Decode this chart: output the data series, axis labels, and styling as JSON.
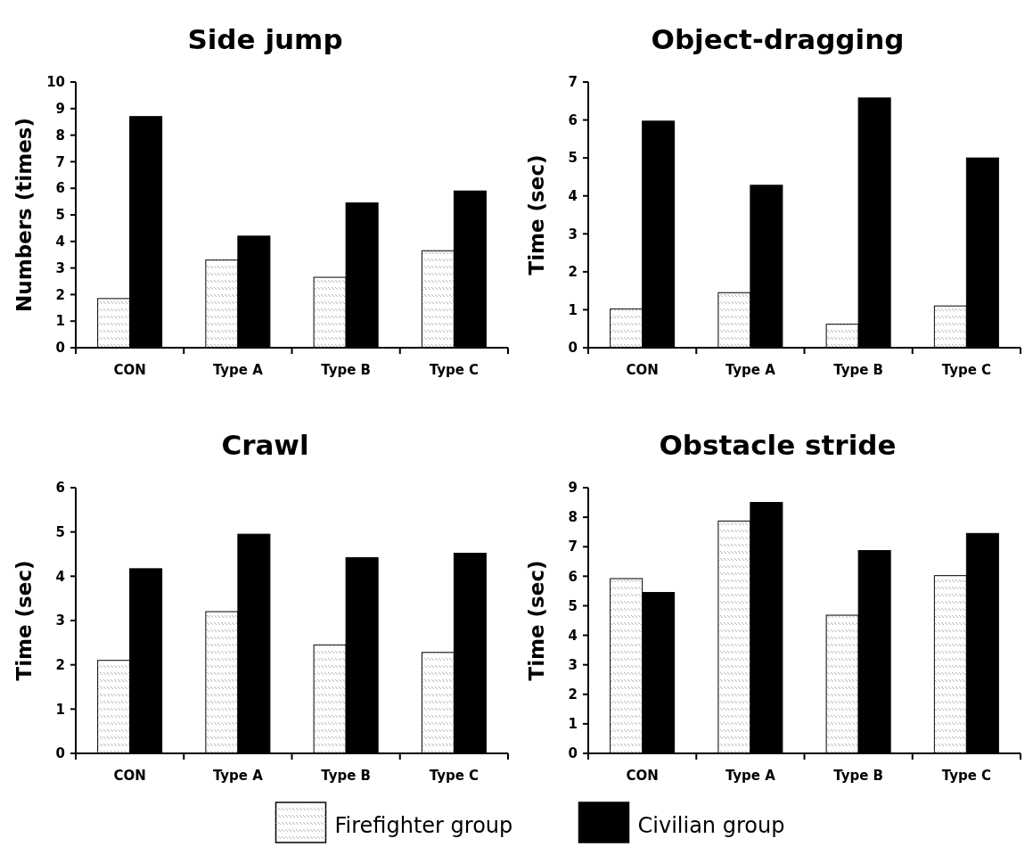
{
  "chart_data": [
    {
      "type": "bar",
      "title": "Side jump",
      "ylabel": "Numbers (times)",
      "categories": [
        "CON",
        "Type A",
        "Type B",
        "Type C"
      ],
      "ylim": [
        0,
        10
      ],
      "yticks": [
        0,
        1,
        2,
        3,
        4,
        5,
        6,
        7,
        8,
        9,
        10
      ],
      "grid": false,
      "legend": "bottom",
      "series": [
        {
          "name": "Firefighter group",
          "color": "#ffffff",
          "values": [
            1.85,
            3.3,
            2.65,
            3.65
          ]
        },
        {
          "name": "Civilian group",
          "color": "#000000",
          "values": [
            8.7,
            4.2,
            5.45,
            5.9
          ]
        }
      ]
    },
    {
      "type": "bar",
      "title": "Object-dragging",
      "ylabel": "Time (sec)",
      "categories": [
        "CON",
        "Type A",
        "Type B",
        "Type C"
      ],
      "ylim": [
        0,
        7
      ],
      "yticks": [
        0,
        1,
        2,
        3,
        4,
        5,
        6,
        7
      ],
      "grid": false,
      "legend": "bottom",
      "series": [
        {
          "name": "Firefighter group",
          "color": "#ffffff",
          "values": [
            1.02,
            1.45,
            0.62,
            1.1
          ]
        },
        {
          "name": "Civilian group",
          "color": "#000000",
          "values": [
            5.97,
            4.28,
            6.58,
            5.0
          ]
        }
      ]
    },
    {
      "type": "bar",
      "title": "Crawl",
      "ylabel": "Time (sec)",
      "categories": [
        "CON",
        "Type A",
        "Type B",
        "Type C"
      ],
      "ylim": [
        0,
        6
      ],
      "yticks": [
        0,
        1,
        2,
        3,
        4,
        5,
        6
      ],
      "grid": false,
      "legend": "bottom",
      "series": [
        {
          "name": "Firefighter group",
          "color": "#ffffff",
          "values": [
            2.1,
            3.2,
            2.45,
            2.28
          ]
        },
        {
          "name": "Civilian group",
          "color": "#000000",
          "values": [
            4.17,
            4.95,
            4.42,
            4.52
          ]
        }
      ]
    },
    {
      "type": "bar",
      "title": "Obstacle stride",
      "ylabel": "Time (sec)",
      "categories": [
        "CON",
        "Type A",
        "Type B",
        "Type C"
      ],
      "ylim": [
        0,
        9
      ],
      "yticks": [
        0,
        1,
        2,
        3,
        4,
        5,
        6,
        7,
        8,
        9
      ],
      "grid": false,
      "legend": "bottom",
      "series": [
        {
          "name": "Firefighter group",
          "color": "#ffffff",
          "values": [
            5.92,
            7.87,
            4.68,
            6.02
          ]
        },
        {
          "name": "Civilian group",
          "color": "#000000",
          "values": [
            5.45,
            8.5,
            6.87,
            7.45
          ]
        }
      ]
    }
  ]
}
